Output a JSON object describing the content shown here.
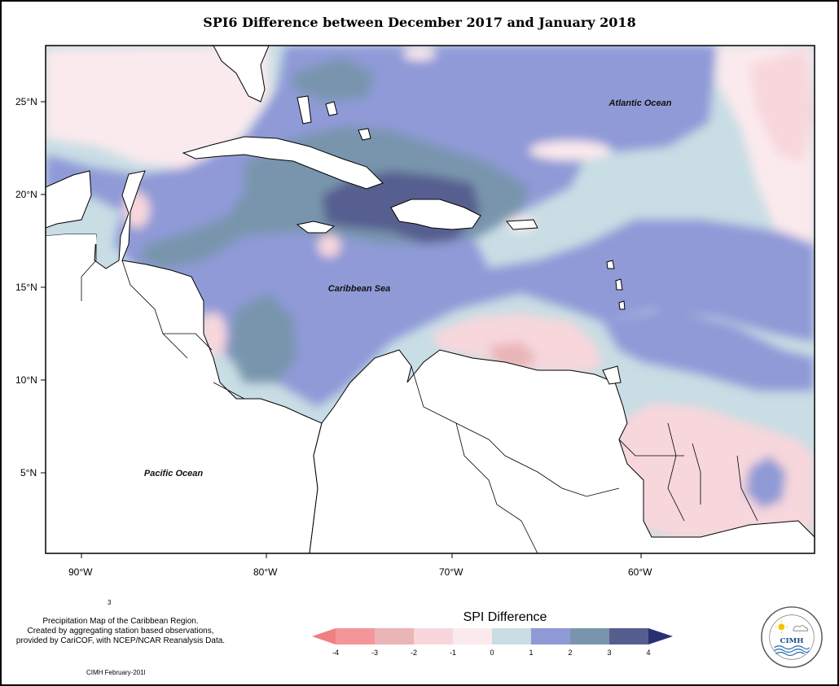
{
  "map": {
    "title": "SPI6 Difference between December 2017 and January 2018",
    "labels": {
      "atlantic": "Atlantic Ocean",
      "caribbean": "Caribbean Sea",
      "pacific": "Pacific Ocean"
    },
    "lat_ticks": [
      "25°N",
      "20°N",
      "15°N",
      "10°N",
      "5°N"
    ],
    "lon_ticks": [
      "90°W",
      "80°W",
      "70°W",
      "60°W"
    ],
    "extent": {
      "lon": [
        -92,
        -50
      ],
      "lat": [
        1,
        28
      ]
    }
  },
  "description": {
    "line1": "Precipitation Map of the Caribbean Region.",
    "line2": "Created by aggregating station based observations,",
    "line3": "provided by CariCOF, with NCEP/NCAR Reanalysis Data.",
    "credit": "CIMH February-201l",
    "stray_mark": "3"
  },
  "legend": {
    "title": "SPI Difference",
    "ticks": [
      "-4",
      "-3",
      "-2",
      "-1",
      "0",
      "1",
      "2",
      "3",
      "4"
    ],
    "colors": [
      "#f3969a",
      "#e9b5b7",
      "#f7d7dc",
      "#fbeaed",
      "#c8dde4",
      "#8f9ad7",
      "#7995ad",
      "#565e8f"
    ],
    "left_arrow_color": "#f07f82",
    "right_arrow_color": "#2a2f73"
  },
  "logo": {
    "text": "CIMH"
  }
}
